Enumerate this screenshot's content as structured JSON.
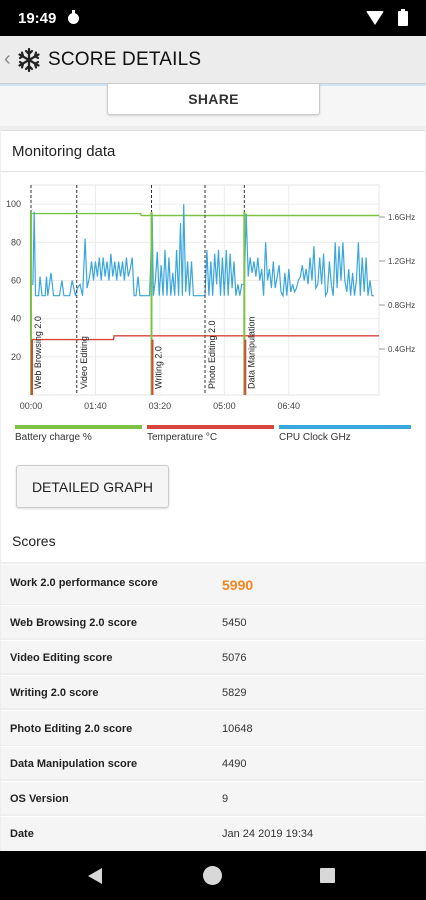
{
  "status": {
    "time": "19:49"
  },
  "header": {
    "title": "SCORE DETAILS",
    "back_glyph": "‹",
    "logo_icon": "snowflake-icon"
  },
  "share": {
    "label": "SHARE"
  },
  "monitor": {
    "title": "Monitoring data",
    "legend": [
      {
        "label": "Battery charge %",
        "color": "#7dc242"
      },
      {
        "label": "Temperature °C",
        "color": "#d6463a"
      },
      {
        "label": "CPU Clock GHz",
        "color": "#3aa6dc"
      }
    ],
    "detail_button": "DETAILED GRAPH"
  },
  "chart_data": {
    "type": "line",
    "x_ticks": [
      "00:00",
      "01:40",
      "03:20",
      "05:00",
      "06:40"
    ],
    "x_range_seconds": [
      0,
      540
    ],
    "left_axis": {
      "ticks": [
        "20",
        "40",
        "60",
        "80",
        "100"
      ],
      "range": [
        0,
        110
      ]
    },
    "right_axis": {
      "ticks": [
        "0.4GHz",
        "0.8GHz",
        "1.2GHz",
        "1.6GHz"
      ],
      "unit": "GHz"
    },
    "segments": [
      {
        "label": "Web Browsing 2.0",
        "start": 0
      },
      {
        "label": "Video Editing",
        "start": 71
      },
      {
        "label": "Writing 2.0",
        "start": 187
      },
      {
        "label": "Photo Editing 2.0",
        "start": 270
      },
      {
        "label": "Data Manipulation",
        "start": 331
      }
    ],
    "series": [
      {
        "name": "Battery charge %",
        "color": "#7dc242",
        "points": [
          [
            0,
            95
          ],
          [
            170,
            95
          ],
          [
            171,
            94
          ],
          [
            540,
            94
          ]
        ]
      },
      {
        "name": "Temperature °C",
        "color": "#d6463a",
        "points": [
          [
            0,
            29
          ],
          [
            128,
            29
          ],
          [
            129,
            31
          ],
          [
            540,
            31
          ]
        ]
      },
      {
        "name": "CPU Clock GHz",
        "color": "#3aa6dc",
        "points": [
          [
            0,
            58
          ],
          [
            3,
            58
          ],
          [
            5,
            96
          ],
          [
            7,
            52
          ],
          [
            12,
            52
          ],
          [
            14,
            62
          ],
          [
            17,
            52
          ],
          [
            22,
            52
          ],
          [
            24,
            62
          ],
          [
            26,
            52
          ],
          [
            31,
            64
          ],
          [
            35,
            52
          ],
          [
            40,
            52
          ],
          [
            44,
            52
          ],
          [
            48,
            60
          ],
          [
            51,
            52
          ],
          [
            57,
            52
          ],
          [
            60,
            52
          ],
          [
            64,
            60
          ],
          [
            69,
            52
          ],
          [
            72,
            56
          ],
          [
            76,
            58
          ],
          [
            80,
            52
          ],
          [
            84,
            82
          ],
          [
            87,
            56
          ],
          [
            91,
            62
          ],
          [
            94,
            70
          ],
          [
            97,
            60
          ],
          [
            100,
            70
          ],
          [
            103,
            62
          ],
          [
            106,
            72
          ],
          [
            109,
            60
          ],
          [
            112,
            72
          ],
          [
            115,
            62
          ],
          [
            118,
            70
          ],
          [
            121,
            60
          ],
          [
            124,
            74
          ],
          [
            127,
            62
          ],
          [
            130,
            70
          ],
          [
            133,
            60
          ],
          [
            136,
            70
          ],
          [
            139,
            62
          ],
          [
            142,
            70
          ],
          [
            145,
            60
          ],
          [
            148,
            72
          ],
          [
            151,
            62
          ],
          [
            154,
            66
          ],
          [
            157,
            72
          ],
          [
            160,
            52
          ],
          [
            163,
            52
          ],
          [
            166,
            62
          ],
          [
            169,
            52
          ],
          [
            173,
            52
          ],
          [
            176,
            52
          ],
          [
            180,
            52
          ],
          [
            184,
            52
          ],
          [
            188,
            95
          ],
          [
            190,
            52
          ],
          [
            193,
            60
          ],
          [
            196,
            75
          ],
          [
            199,
            52
          ],
          [
            202,
            68
          ],
          [
            205,
            52
          ],
          [
            208,
            76
          ],
          [
            211,
            52
          ],
          [
            214,
            72
          ],
          [
            217,
            52
          ],
          [
            220,
            64
          ],
          [
            223,
            52
          ],
          [
            226,
            76
          ],
          [
            229,
            52
          ],
          [
            232,
            90
          ],
          [
            235,
            52
          ],
          [
            237,
            100
          ],
          [
            240,
            54
          ],
          [
            243,
            70
          ],
          [
            246,
            52
          ],
          [
            249,
            70
          ],
          [
            252,
            52
          ],
          [
            256,
            52
          ],
          [
            260,
            52
          ],
          [
            264,
            52
          ],
          [
            270,
            52
          ],
          [
            273,
            76
          ],
          [
            276,
            52
          ],
          [
            279,
            70
          ],
          [
            282,
            52
          ],
          [
            285,
            74
          ],
          [
            288,
            58
          ],
          [
            291,
            76
          ],
          [
            294,
            52
          ],
          [
            297,
            72
          ],
          [
            300,
            52
          ],
          [
            303,
            76
          ],
          [
            306,
            52
          ],
          [
            309,
            74
          ],
          [
            312,
            56
          ],
          [
            315,
            70
          ],
          [
            318,
            52
          ],
          [
            321,
            58
          ],
          [
            324,
            52
          ],
          [
            327,
            58
          ],
          [
            331,
            58
          ],
          [
            334,
            95
          ],
          [
            337,
            62
          ],
          [
            340,
            72
          ],
          [
            343,
            64
          ],
          [
            346,
            70
          ],
          [
            349,
            62
          ],
          [
            352,
            72
          ],
          [
            355,
            60
          ],
          [
            358,
            66
          ],
          [
            361,
            52
          ],
          [
            364,
            80
          ],
          [
            367,
            60
          ],
          [
            370,
            66
          ],
          [
            373,
            56
          ],
          [
            376,
            70
          ],
          [
            379,
            56
          ],
          [
            382,
            62
          ],
          [
            385,
            68
          ],
          [
            388,
            54
          ],
          [
            391,
            52
          ],
          [
            394,
            64
          ],
          [
            397,
            52
          ],
          [
            400,
            66
          ],
          [
            403,
            54
          ],
          [
            406,
            58
          ],
          [
            409,
            54
          ],
          [
            412,
            56
          ],
          [
            415,
            60
          ],
          [
            418,
            62
          ],
          [
            421,
            68
          ],
          [
            424,
            60
          ],
          [
            427,
            66
          ],
          [
            430,
            58
          ],
          [
            433,
            72
          ],
          [
            436,
            60
          ],
          [
            439,
            78
          ],
          [
            442,
            56
          ],
          [
            445,
            58
          ],
          [
            448,
            72
          ],
          [
            451,
            58
          ],
          [
            454,
            74
          ],
          [
            457,
            52
          ],
          [
            460,
            54
          ],
          [
            463,
            70
          ],
          [
            466,
            58
          ],
          [
            469,
            52
          ],
          [
            472,
            80
          ],
          [
            475,
            56
          ],
          [
            478,
            78
          ],
          [
            481,
            60
          ],
          [
            484,
            80
          ],
          [
            487,
            60
          ],
          [
            490,
            54
          ],
          [
            493,
            66
          ],
          [
            496,
            52
          ],
          [
            499,
            64
          ],
          [
            502,
            52
          ],
          [
            505,
            60
          ],
          [
            508,
            80
          ],
          [
            511,
            52
          ],
          [
            514,
            72
          ],
          [
            517,
            54
          ],
          [
            520,
            72
          ],
          [
            523,
            52
          ],
          [
            526,
            60
          ],
          [
            529,
            52
          ],
          [
            532,
            52
          ]
        ]
      }
    ]
  },
  "scores": {
    "heading": "Scores",
    "rows": [
      {
        "label": "Work 2.0 performance score",
        "value": "5990"
      },
      {
        "label": "Web Browsing 2.0 score",
        "value": "5450"
      },
      {
        "label": "Video Editing score",
        "value": "5076"
      },
      {
        "label": "Writing 2.0 score",
        "value": "5829"
      },
      {
        "label": "Photo Editing 2.0 score",
        "value": "10648"
      },
      {
        "label": "Data Manipulation score",
        "value": "4490"
      },
      {
        "label": "OS Version",
        "value": "9"
      },
      {
        "label": "Date",
        "value": "Jan 24 2019 19:34"
      }
    ]
  }
}
